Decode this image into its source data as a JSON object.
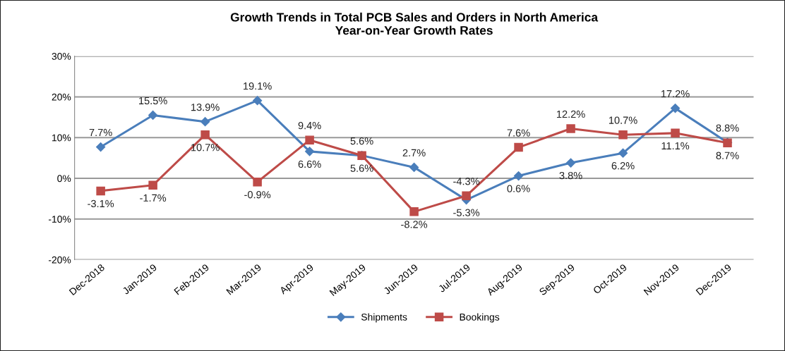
{
  "chart_data": {
    "type": "line",
    "title": "Growth Trends in Total PCB Sales and Orders in North America\nYear-on-Year Growth Rates",
    "categories": [
      "Dec-2018",
      "Jan-2019",
      "Feb-2019",
      "Mar-2019",
      "Apr-2019",
      "May-2019",
      "Jun-2019",
      "Jul-2019",
      "Aug-2019",
      "Sep-2019",
      "Oct-2019",
      "Nov-2019",
      "Dec-2019"
    ],
    "series": [
      {
        "name": "Shipments",
        "color": "#4a7ebb",
        "marker": "diamond",
        "values": [
          7.7,
          15.5,
          13.9,
          19.1,
          6.6,
          5.6,
          2.7,
          -5.3,
          0.6,
          3.8,
          6.2,
          17.2,
          8.8
        ],
        "value_labels": [
          "7.7%",
          "15.5%",
          "13.9%",
          "19.1%",
          "6.6%",
          "5.6%",
          "2.7%",
          "-5.3%",
          "0.6%",
          "3.8%",
          "6.2%",
          "17.2%",
          "8.8%"
        ]
      },
      {
        "name": "Bookings",
        "color": "#be4b48",
        "marker": "square",
        "values": [
          -3.1,
          -1.7,
          10.7,
          -0.9,
          9.4,
          5.6,
          -8.2,
          -4.3,
          7.6,
          12.2,
          10.7,
          11.1,
          8.7
        ],
        "value_labels": [
          "-3.1%",
          "-1.7%",
          "10.7%",
          "-0.9%",
          "9.4%",
          "5.6%",
          "-8.2%",
          "-4.3%",
          "7.6%",
          "12.2%",
          "10.7%",
          "11.1%",
          "8.7%"
        ]
      }
    ],
    "ylim": [
      -20,
      30
    ],
    "yticks": [
      {
        "value": -20,
        "label": "-20%"
      },
      {
        "value": -10,
        "label": "-10%"
      },
      {
        "value": 0,
        "label": "0%"
      },
      {
        "value": 10,
        "label": "10%"
      },
      {
        "value": 20,
        "label": "20%"
      },
      {
        "value": 30,
        "label": "30%"
      }
    ],
    "grid": "y",
    "legend": "bottom",
    "line_style": "solid"
  }
}
